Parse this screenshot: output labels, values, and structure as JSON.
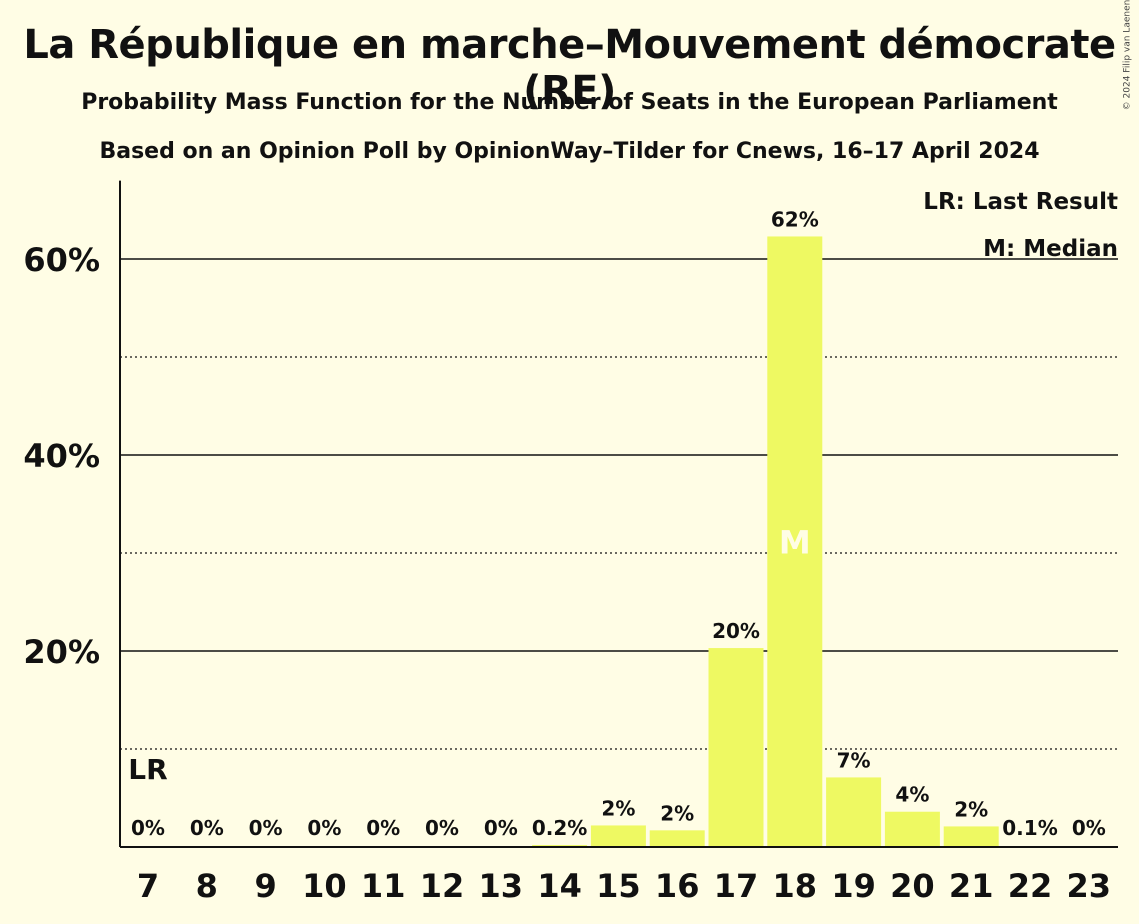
{
  "chart_data": {
    "type": "bar",
    "title": "La République en marche–Mouvement démocrate (RE)",
    "subtitle": "Probability Mass Function for the Number of Seats in the European Parliament",
    "subtitle2": "Based on an Opinion Poll by OpinionWay–Tilder for Cnews, 16–17 April 2024",
    "copyright": "© 2024 Filip van Laenen",
    "categories": [
      "7",
      "8",
      "9",
      "10",
      "11",
      "12",
      "13",
      "14",
      "15",
      "16",
      "17",
      "18",
      "19",
      "20",
      "21",
      "22",
      "23"
    ],
    "values": [
      0,
      0,
      0,
      0,
      0,
      0,
      0,
      0.2,
      2.2,
      1.7,
      20.3,
      62.3,
      7.1,
      3.6,
      2.1,
      0.1,
      0
    ],
    "data_labels": [
      "0%",
      "0%",
      "0%",
      "0%",
      "0%",
      "0%",
      "0%",
      "0.2%",
      "2%",
      "2%",
      "20%",
      "62%",
      "7%",
      "4%",
      "2%",
      "0.1%",
      "0%"
    ],
    "ylim": [
      0,
      68
    ],
    "y_ticks": [
      {
        "value": 20,
        "label": "20%"
      },
      {
        "value": 40,
        "label": "40%"
      },
      {
        "value": 60,
        "label": "60%"
      }
    ],
    "minor_gridlines": [
      10,
      30,
      50
    ],
    "last_result_category": "7",
    "last_result_marker": "LR",
    "median_category": "18",
    "median_marker": "M",
    "legend": [
      "LR: Last Result",
      "M: Median"
    ],
    "legend_position": "top-right",
    "bar_color": "#EEF962",
    "background_color": "#FFFDE5"
  }
}
